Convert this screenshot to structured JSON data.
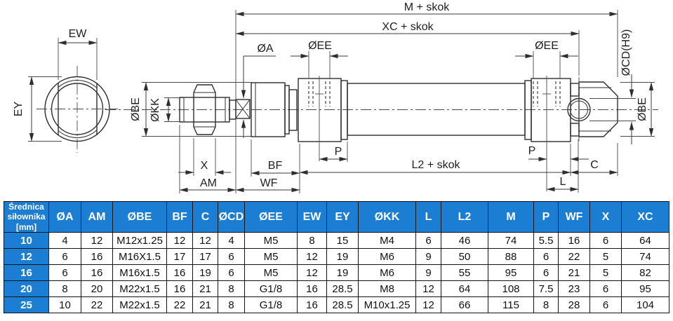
{
  "colors": {
    "header_blue": "#1b7ed3",
    "drawing_line": "#2e2e2e",
    "table_border": "#101418",
    "header_text": "#ffffff",
    "cell_text": "#111111"
  },
  "drawing": {
    "labels": {
      "ew": "EW",
      "ey": "EY",
      "m_skok": "M + skok",
      "xc_skok": "XC + skok",
      "dia_a": "ØA",
      "dia_ee": "ØEE",
      "dia_cd_h9": "ØCD(H9)",
      "dia_be": "ØBE",
      "dia_kk": "ØKK",
      "x": "X",
      "am": "AM",
      "bf": "BF",
      "wf": "WF",
      "p": "P",
      "l2_skok": "L2 + skok",
      "c": "C",
      "l": "L"
    }
  },
  "table": {
    "header": {
      "col0_lines": [
        "Średnica",
        "siłownika",
        "[mm]"
      ],
      "columns": [
        "ØA",
        "AM",
        "ØBE",
        "BF",
        "C",
        "ØCD",
        "ØEE",
        "EW",
        "EY",
        "ØKK",
        "L",
        "L2",
        "M",
        "P",
        "WF",
        "X",
        "XC"
      ]
    },
    "rows": [
      {
        "bore": "10",
        "values": [
          "4",
          "12",
          "M12x1.25",
          "12",
          "12",
          "4",
          "M5",
          "8",
          "15",
          "M4",
          "6",
          "46",
          "74",
          "5.5",
          "16",
          "6",
          "64"
        ]
      },
      {
        "bore": "12",
        "values": [
          "6",
          "16",
          "M16X1.5",
          "17",
          "17",
          "6",
          "M5",
          "12",
          "19",
          "M6",
          "9",
          "50",
          "88",
          "6",
          "22",
          "5",
          "74"
        ]
      },
      {
        "bore": "16",
        "values": [
          "6",
          "16",
          "M16x1.5",
          "16",
          "19",
          "6",
          "M5",
          "12",
          "19",
          "M6",
          "9",
          "55",
          "95",
          "6",
          "21",
          "5",
          "82"
        ]
      },
      {
        "bore": "20",
        "values": [
          "8",
          "20",
          "M22x1.5",
          "16",
          "21",
          "8",
          "G1/8",
          "16",
          "28.5",
          "M8",
          "12",
          "64",
          "108",
          "7.5",
          "23",
          "6",
          "95"
        ]
      },
      {
        "bore": "25",
        "values": [
          "10",
          "22",
          "M22x1.5",
          "22",
          "21",
          "8",
          "G1/8",
          "16",
          "28.5",
          "M10x1.25",
          "12",
          "66",
          "115",
          "8",
          "28",
          "6",
          "104"
        ]
      }
    ]
  }
}
